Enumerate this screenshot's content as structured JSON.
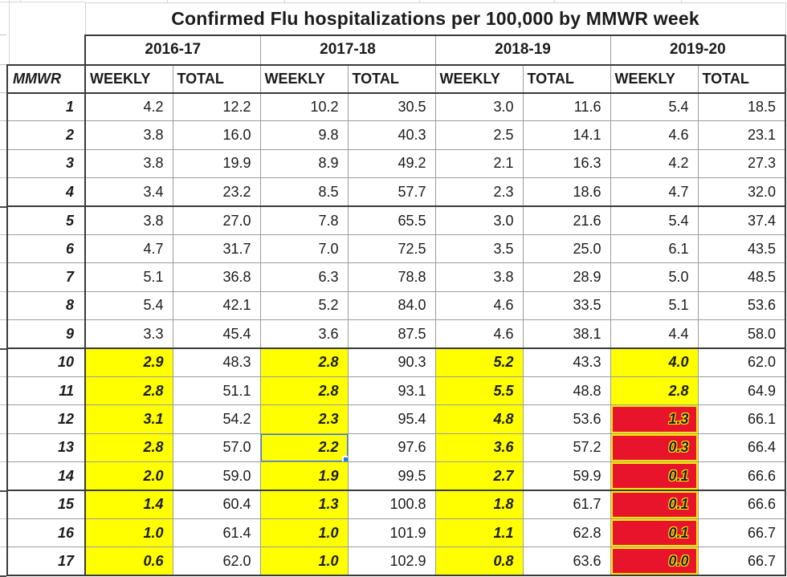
{
  "title": "Confirmed Flu hospitalizations per 100,000 by MMWR week",
  "labels": {
    "row_header": "MMWR",
    "weekly": "WEEKLY",
    "total": "TOTAL"
  },
  "seasons": [
    "2016-17",
    "2017-18",
    "2018-19",
    "2019-20"
  ],
  "colors": {
    "highlight_yellow": "#ffff00",
    "alert_red": "#e8142c",
    "alert_text_outline": "#ffe800",
    "selection_blue": "#2b7ce0",
    "grid_light": "#9b9b9b",
    "grid_bold": "#3a3a3a"
  },
  "selection": {
    "row_week": "13",
    "season": "2017-18",
    "column": "WEEKLY",
    "value": "2.2"
  },
  "group_breaks_after_weeks": [
    "4",
    "9",
    "14"
  ],
  "rows": [
    {
      "week": "1",
      "values": [
        "4.2",
        "12.2",
        "10.2",
        "30.5",
        "3.0",
        "11.6",
        "5.4",
        "18.5"
      ],
      "highlights": [
        "",
        "",
        "",
        "",
        "",
        "",
        "",
        ""
      ]
    },
    {
      "week": "2",
      "values": [
        "3.8",
        "16.0",
        "9.8",
        "40.3",
        "2.5",
        "14.1",
        "4.6",
        "23.1"
      ],
      "highlights": [
        "",
        "",
        "",
        "",
        "",
        "",
        "",
        ""
      ]
    },
    {
      "week": "3",
      "values": [
        "3.8",
        "19.9",
        "8.9",
        "49.2",
        "2.1",
        "16.3",
        "4.2",
        "27.3"
      ],
      "highlights": [
        "",
        "",
        "",
        "",
        "",
        "",
        "",
        ""
      ]
    },
    {
      "week": "4",
      "values": [
        "3.4",
        "23.2",
        "8.5",
        "57.7",
        "2.3",
        "18.6",
        "4.7",
        "32.0"
      ],
      "highlights": [
        "",
        "",
        "",
        "",
        "",
        "",
        "",
        ""
      ]
    },
    {
      "week": "5",
      "values": [
        "3.8",
        "27.0",
        "7.8",
        "65.5",
        "3.0",
        "21.6",
        "5.4",
        "37.4"
      ],
      "highlights": [
        "",
        "",
        "",
        "",
        "",
        "",
        "",
        ""
      ]
    },
    {
      "week": "6",
      "values": [
        "4.7",
        "31.7",
        "7.0",
        "72.5",
        "3.5",
        "25.0",
        "6.1",
        "43.5"
      ],
      "highlights": [
        "",
        "",
        "",
        "",
        "",
        "",
        "",
        ""
      ]
    },
    {
      "week": "7",
      "values": [
        "5.1",
        "36.8",
        "6.3",
        "78.8",
        "3.8",
        "28.9",
        "5.0",
        "48.5"
      ],
      "highlights": [
        "",
        "",
        "",
        "",
        "",
        "",
        "",
        ""
      ]
    },
    {
      "week": "8",
      "values": [
        "5.4",
        "42.1",
        "5.2",
        "84.0",
        "4.6",
        "33.5",
        "5.1",
        "53.6"
      ],
      "highlights": [
        "",
        "",
        "",
        "",
        "",
        "",
        "",
        ""
      ]
    },
    {
      "week": "9",
      "values": [
        "3.3",
        "45.4",
        "3.6",
        "87.5",
        "4.6",
        "38.1",
        "4.4",
        "58.0"
      ],
      "highlights": [
        "",
        "",
        "",
        "",
        "",
        "",
        "",
        ""
      ]
    },
    {
      "week": "10",
      "values": [
        "2.9",
        "48.3",
        "2.8",
        "90.3",
        "5.2",
        "43.3",
        "4.0",
        "62.0"
      ],
      "highlights": [
        "y",
        "",
        "y",
        "",
        "y",
        "",
        "y",
        ""
      ]
    },
    {
      "week": "11",
      "values": [
        "2.8",
        "51.1",
        "2.8",
        "93.1",
        "5.5",
        "48.8",
        "2.8",
        "64.9"
      ],
      "highlights": [
        "y",
        "",
        "y",
        "",
        "y",
        "",
        "y",
        ""
      ]
    },
    {
      "week": "12",
      "values": [
        "3.1",
        "54.2",
        "2.3",
        "95.4",
        "4.8",
        "53.6",
        "1.3",
        "66.1"
      ],
      "highlights": [
        "y",
        "",
        "y",
        "",
        "y",
        "",
        "r",
        ""
      ]
    },
    {
      "week": "13",
      "values": [
        "2.8",
        "57.0",
        "2.2",
        "97.6",
        "3.6",
        "57.2",
        "0.3",
        "66.4"
      ],
      "highlights": [
        "y",
        "",
        "ys",
        "",
        "y",
        "",
        "r",
        ""
      ]
    },
    {
      "week": "14",
      "values": [
        "2.0",
        "59.0",
        "1.9",
        "99.5",
        "2.7",
        "59.9",
        "0.1",
        "66.6"
      ],
      "highlights": [
        "y",
        "",
        "y",
        "",
        "y",
        "",
        "r",
        ""
      ]
    },
    {
      "week": "15",
      "values": [
        "1.4",
        "60.4",
        "1.3",
        "100.8",
        "1.8",
        "61.7",
        "0.1",
        "66.6"
      ],
      "highlights": [
        "y",
        "",
        "y",
        "",
        "y",
        "",
        "r",
        ""
      ]
    },
    {
      "week": "16",
      "values": [
        "1.0",
        "61.4",
        "1.0",
        "101.9",
        "1.1",
        "62.8",
        "0.1",
        "66.7"
      ],
      "highlights": [
        "y",
        "",
        "y",
        "",
        "y",
        "",
        "r",
        ""
      ]
    },
    {
      "week": "17",
      "values": [
        "0.6",
        "62.0",
        "1.0",
        "102.9",
        "0.8",
        "63.6",
        "0.0",
        "66.7"
      ],
      "highlights": [
        "y",
        "",
        "y",
        "",
        "y",
        "",
        "r",
        ""
      ]
    }
  ]
}
